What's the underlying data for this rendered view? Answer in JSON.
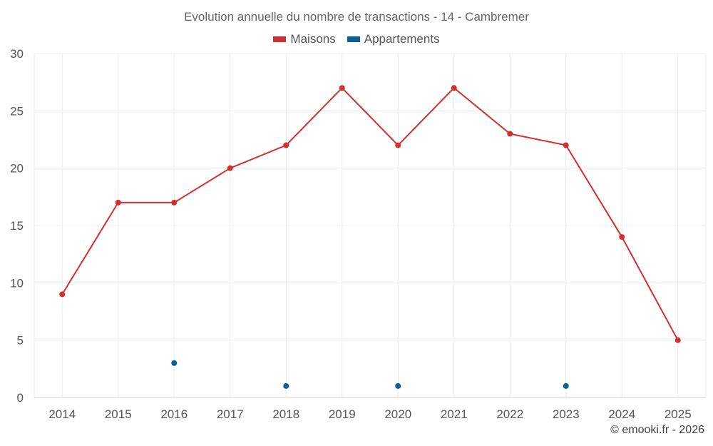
{
  "chart_data": {
    "type": "line",
    "title": "Evolution annuelle du nombre de transactions - 14 - Cambremer",
    "categories": [
      "2014",
      "2015",
      "2016",
      "2017",
      "2018",
      "2019",
      "2020",
      "2021",
      "2022",
      "2023",
      "2024",
      "2025"
    ],
    "ylim": [
      0,
      30
    ],
    "yticks": [
      0,
      5,
      10,
      15,
      20,
      25,
      30
    ],
    "xlabel": "",
    "ylabel": "",
    "grid": true,
    "legend_position": "top-center",
    "series": [
      {
        "name": "Maisons",
        "color": "#d32f2f",
        "line": true,
        "values": [
          9,
          17,
          17,
          20,
          22,
          27,
          22,
          27,
          23,
          22,
          14,
          5
        ]
      },
      {
        "name": "Appartements",
        "color": "#0a5e9a",
        "line": false,
        "values": [
          null,
          null,
          3,
          null,
          1,
          null,
          1,
          null,
          null,
          1,
          null,
          null
        ]
      }
    ]
  },
  "credit": "© emooki.fr - 2026"
}
